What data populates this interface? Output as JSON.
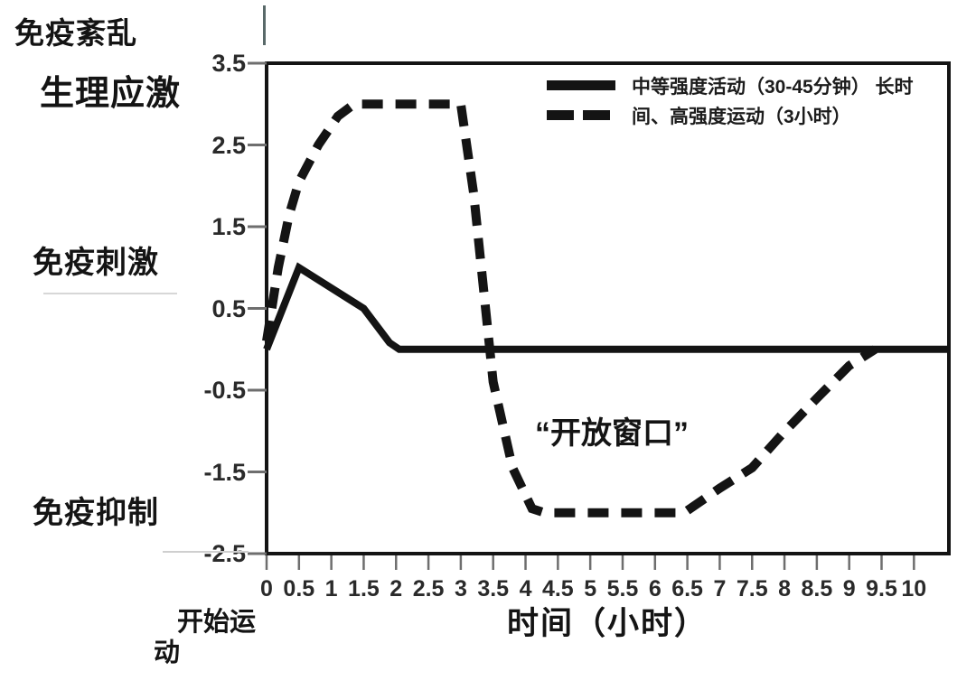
{
  "annotations": {
    "immune_disorder": "免疫紊乱",
    "physiological_stress": "生理应激",
    "immune_stimulation": "免疫刺激",
    "immune_suppression": "免疫抑制",
    "open_window": "“开放窗口”",
    "start_exercise": "开始运动",
    "x_axis_title": "时间（小时）"
  },
  "legend": {
    "line1": "中等强度活动（30-45分钟） 长时",
    "line2": "间、高强度运动（3小时）"
  },
  "colors": {
    "ink": "#141414",
    "tick": "#6e6e6e",
    "tick_text": "#2a2a2a"
  },
  "chart_data": {
    "type": "line",
    "title": "",
    "xlabel": "时间（小时）",
    "ylabel": "",
    "xlim": [
      0,
      10.54
    ],
    "ylim": [
      -2.5,
      3.5
    ],
    "grid": false,
    "legend_position": "top-right-inside",
    "x_tick_labels": [
      "0",
      "0.5",
      "1",
      "1.5",
      "2",
      "2.5",
      "3",
      "3.5",
      "4",
      "4.5",
      "5",
      "5.5",
      "6",
      "6.5",
      "7",
      "7.5",
      "8",
      "8.5",
      "9",
      "9.5",
      "10"
    ],
    "y_tick_labels": [
      "3.5",
      "2.5",
      "1.5",
      "0.5",
      "-0.5",
      "-1.5",
      "-2.5"
    ],
    "y_axis_region_labels": [
      {
        "text": "免疫紊乱",
        "at_value": 3.5
      },
      {
        "text": "生理应激",
        "at_value": 3.2
      },
      {
        "text": "免疫刺激",
        "at_value": 1.1
      },
      {
        "text": "免疫抑制",
        "at_value": -1.9
      }
    ],
    "annotation": {
      "text": "“开放窗口”",
      "x": 4.6,
      "y": -1.0
    },
    "series": [
      {
        "name": "中等强度活动（30-45分钟）",
        "line_style": "solid",
        "color": "#141414",
        "points": [
          [
            0,
            0
          ],
          [
            0.5,
            1.0
          ],
          [
            1.5,
            0.5
          ],
          [
            1.9,
            0.08
          ],
          [
            2.05,
            0
          ],
          [
            10.54,
            0
          ]
        ]
      },
      {
        "name": "长时间、高强度运动（3小时）",
        "line_style": "dashed",
        "color": "#141414",
        "points": [
          [
            0,
            0.1
          ],
          [
            0.18,
            1.0
          ],
          [
            0.35,
            1.65
          ],
          [
            0.5,
            2.05
          ],
          [
            0.8,
            2.5
          ],
          [
            1.1,
            2.85
          ],
          [
            1.35,
            3.0
          ],
          [
            3.0,
            3.0
          ],
          [
            3.2,
            1.9
          ],
          [
            3.5,
            -0.4
          ],
          [
            3.8,
            -1.45
          ],
          [
            4.1,
            -1.95
          ],
          [
            4.3,
            -2.0
          ],
          [
            6.45,
            -2.0
          ],
          [
            7.0,
            -1.7
          ],
          [
            7.5,
            -1.45
          ],
          [
            7.95,
            -1.05
          ],
          [
            8.5,
            -0.6
          ],
          [
            9.0,
            -0.2
          ],
          [
            9.4,
            0
          ]
        ]
      }
    ]
  }
}
